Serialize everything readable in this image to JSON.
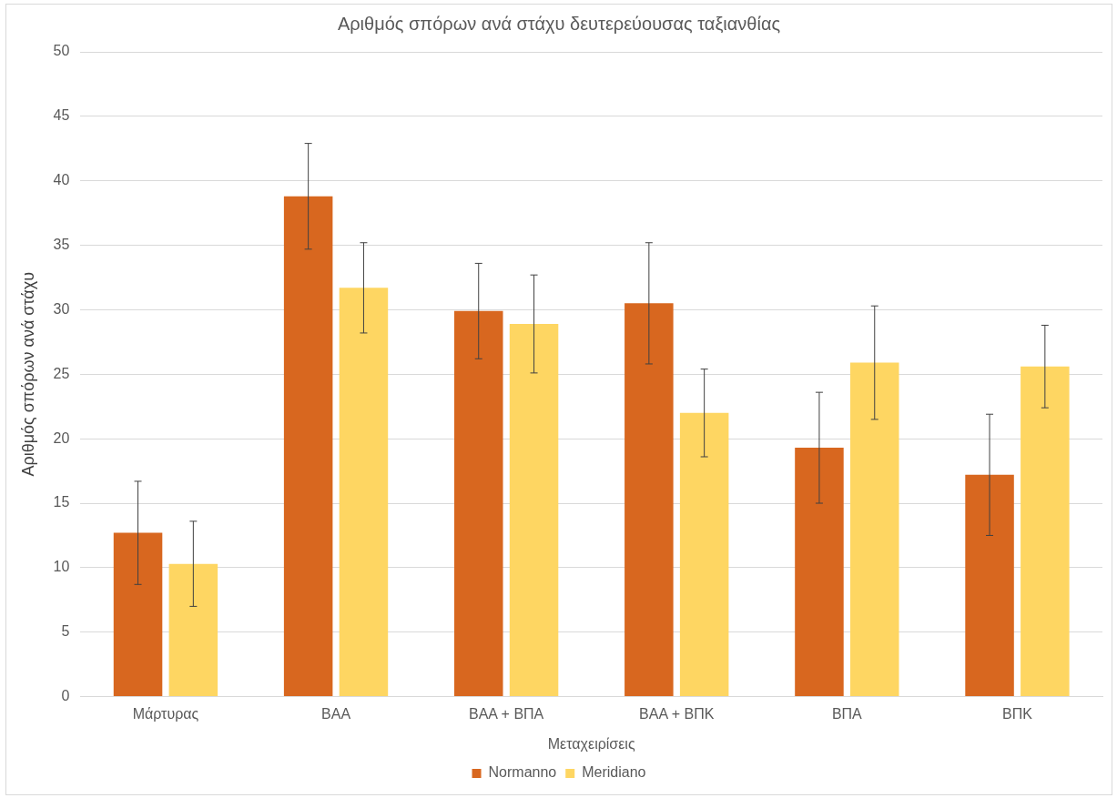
{
  "chart_data": {
    "type": "bar",
    "title": "Αριθμός σπόρων ανά στάχυ δευτερεύουσας ταξιανθίας",
    "xlabel": "Μεταχειρίσεις",
    "ylabel": "Αριθμός σπόρων ανά στάχυ",
    "categories": [
      "Μάρτυρας",
      "ΒΑΑ",
      "ΒΑΑ + ΒΠΑ",
      "ΒΑΑ + ΒΠΚ",
      "ΒΠΑ",
      "ΒΠΚ"
    ],
    "series": [
      {
        "name": "Normanno",
        "color": "#d8671f",
        "values": [
          12.7,
          38.8,
          29.9,
          30.5,
          19.3,
          17.2
        ],
        "errors": [
          4.0,
          4.1,
          3.7,
          4.7,
          4.3,
          4.7
        ]
      },
      {
        "name": "Meridiano",
        "color": "#fed662",
        "values": [
          10.3,
          31.7,
          28.9,
          22.0,
          25.9,
          25.6
        ],
        "errors": [
          3.3,
          3.5,
          3.8,
          3.4,
          4.4,
          3.2
        ]
      }
    ],
    "ylim": [
      0,
      50
    ],
    "yticks": [
      0,
      5,
      10,
      15,
      20,
      25,
      30,
      35,
      40,
      45,
      50
    ],
    "grid": "y",
    "legend": "bottom"
  }
}
